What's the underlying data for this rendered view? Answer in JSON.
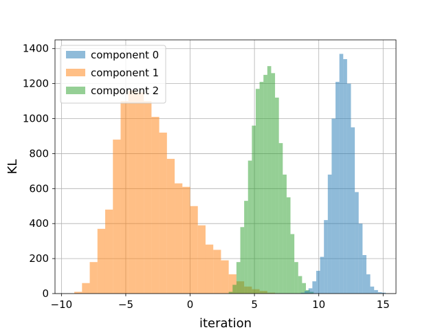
{
  "chart_data": {
    "type": "bar",
    "title": "",
    "xlabel": "iteration",
    "ylabel": "KL",
    "xlim": [
      -10.5,
      16.0
    ],
    "ylim": [
      0,
      1450
    ],
    "xticks": [
      -10,
      -5,
      0,
      5,
      10,
      15
    ],
    "xtick_labels": [
      "−10",
      "−5",
      "0",
      "5",
      "10",
      "15"
    ],
    "yticks": [
      0,
      200,
      400,
      600,
      800,
      1000,
      1200,
      1400
    ],
    "ytick_labels": [
      "0",
      "200",
      "400",
      "600",
      "800",
      "1000",
      "1200",
      "1400"
    ],
    "grid": true,
    "legend_placement": "upper-left",
    "series": [
      {
        "name": "component 1",
        "color": "#ff7f0e",
        "alpha": 0.5,
        "bin_start": -9.0,
        "bin_width": 0.6,
        "values": [
          10,
          60,
          180,
          370,
          480,
          880,
          1100,
          1160,
          1150,
          1100,
          1010,
          920,
          770,
          630,
          610,
          500,
          390,
          280,
          250,
          190,
          110,
          70,
          40,
          25,
          15,
          5
        ]
      },
      {
        "name": "component 2",
        "color": "#2ca02c",
        "alpha": 0.5,
        "bin_start": 3.0,
        "bin_width": 0.3,
        "values": [
          10,
          50,
          180,
          380,
          530,
          760,
          960,
          1170,
          1210,
          1250,
          1300,
          1260,
          1120,
          860,
          680,
          550,
          340,
          180,
          100,
          60,
          20,
          10
        ]
      },
      {
        "name": "component 0",
        "color": "#1f77b4",
        "alpha": 0.5,
        "bin_start": 8.6,
        "bin_width": 0.3,
        "values": [
          5,
          15,
          30,
          70,
          130,
          210,
          420,
          680,
          1000,
          1210,
          1370,
          1340,
          1200,
          950,
          580,
          400,
          220,
          110,
          40,
          20,
          8,
          5
        ]
      }
    ],
    "legend_order": [
      "component 0",
      "component 1",
      "component 2"
    ]
  }
}
